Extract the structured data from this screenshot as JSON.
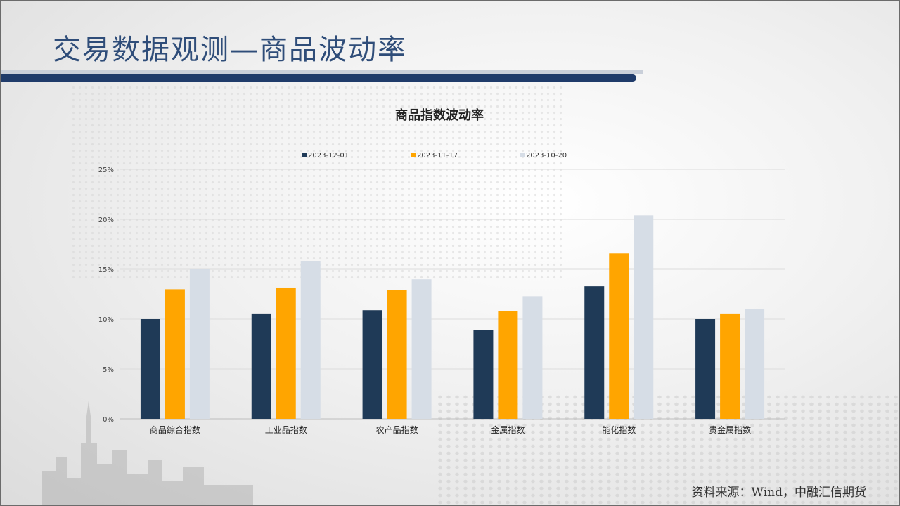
{
  "page": {
    "title": "交易数据观测—商品波动率"
  },
  "source": "资料来源：Wind，中融汇信期货",
  "chart_data": {
    "type": "bar",
    "title": "商品指数波动率",
    "categories": [
      "商品综合指数",
      "工业品指数",
      "农产品指数",
      "金属指数",
      "能化指数",
      "贵金属指数"
    ],
    "series": [
      {
        "name": "2023-12-01",
        "color": "#1f3a57",
        "values": [
          10.0,
          10.5,
          10.9,
          8.9,
          13.3,
          10.0
        ]
      },
      {
        "name": "2023-11-17",
        "color": "#ffa500",
        "values": [
          13.0,
          13.1,
          12.9,
          10.8,
          16.6,
          10.5
        ]
      },
      {
        "name": "2023-10-20",
        "color": "#d6dde6",
        "values": [
          15.0,
          15.8,
          14.0,
          12.3,
          20.4,
          11.0
        ]
      }
    ],
    "yticks": [
      "0%",
      "5%",
      "10%",
      "15%",
      "20%",
      "25%"
    ],
    "ylim": [
      0,
      25
    ],
    "grid": true,
    "legend": "top"
  }
}
